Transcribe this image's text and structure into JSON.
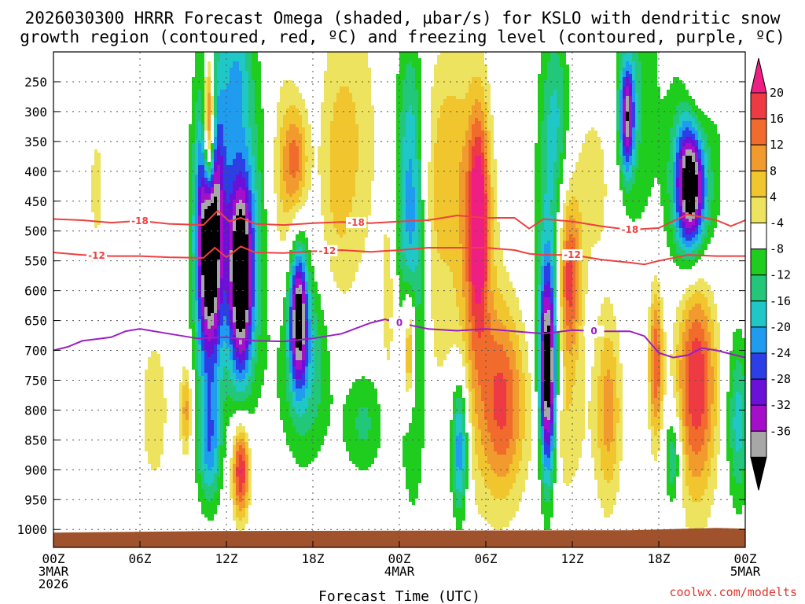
{
  "chart_data": {
    "type": "heatmap",
    "title_line1": "2026030300 HRRR Forecast Omega (shaded, µbar/s) for KSLO with dendritic snow",
    "title_line2": "growth region (contoured, red, ºC) and freezing level (contoured, purple, ºC)",
    "xlabel": "Forecast Time (UTC)",
    "credit": "coolwx.com/modelts",
    "x_hours": [
      0,
      48
    ],
    "x_ticks": [
      {
        "hour": 0,
        "label": "00Z",
        "sub1": "3MAR",
        "sub2": "2026"
      },
      {
        "hour": 6,
        "label": "06Z",
        "sub1": "",
        "sub2": ""
      },
      {
        "hour": 12,
        "label": "12Z",
        "sub1": "",
        "sub2": ""
      },
      {
        "hour": 18,
        "label": "18Z",
        "sub1": "",
        "sub2": ""
      },
      {
        "hour": 24,
        "label": "00Z",
        "sub1": "4MAR",
        "sub2": ""
      },
      {
        "hour": 30,
        "label": "06Z",
        "sub1": "",
        "sub2": ""
      },
      {
        "hour": 36,
        "label": "12Z",
        "sub1": "",
        "sub2": ""
      },
      {
        "hour": 42,
        "label": "18Z",
        "sub1": "",
        "sub2": ""
      },
      {
        "hour": 48,
        "label": "00Z",
        "sub1": "5MAR",
        "sub2": ""
      }
    ],
    "y_pressure_range": [
      200,
      1030
    ],
    "y_ticks": [
      "250",
      "300",
      "350",
      "400",
      "450",
      "500",
      "550",
      "600",
      "650",
      "700",
      "750",
      "800",
      "850",
      "900",
      "950",
      "1000"
    ],
    "colorbar": {
      "labels": [
        "20",
        "16",
        "12",
        "8",
        "4",
        "-4",
        "-8",
        "-12",
        "-16",
        "-20",
        "-24",
        "-28",
        "-32",
        "-36"
      ],
      "bins": [
        {
          "min": 24,
          "color": "#ee1e82"
        },
        {
          "min": 20,
          "color": "#ee3a43"
        },
        {
          "min": 16,
          "color": "#f06b2c"
        },
        {
          "min": 12,
          "color": "#f19a2e"
        },
        {
          "min": 8,
          "color": "#f0c52e"
        },
        {
          "min": 4,
          "color": "#ede35e"
        },
        {
          "min": -4,
          "color": "#ffffff"
        },
        {
          "min": -8,
          "color": "#1fcd1f"
        },
        {
          "min": -12,
          "color": "#22c77a"
        },
        {
          "min": -16,
          "color": "#1fc7c7"
        },
        {
          "min": -20,
          "color": "#1f9cf0"
        },
        {
          "min": -24,
          "color": "#2c3ee6"
        },
        {
          "min": -28,
          "color": "#6b10d8"
        },
        {
          "min": -32,
          "color": "#a50fc9"
        },
        {
          "min": -36,
          "color": "#a7a7a7"
        },
        {
          "min": -999,
          "color": "#000000"
        }
      ]
    },
    "omega_features": [
      {
        "hour": 10.8,
        "p": 330,
        "hw": 0.4,
        "hp": 120,
        "v": 40
      },
      {
        "hour": 10.8,
        "p": 520,
        "hw": 0.9,
        "hp": 210,
        "v": -42
      },
      {
        "hour": 11.5,
        "p": 400,
        "hw": 1.5,
        "hp": 330,
        "v": -12
      },
      {
        "hour": 13.0,
        "p": 580,
        "hw": 0.8,
        "hp": 160,
        "v": -40
      },
      {
        "hour": 13.0,
        "p": 900,
        "hw": 0.6,
        "hp": 80,
        "v": 26
      },
      {
        "hour": 13.8,
        "p": 480,
        "hw": 1.6,
        "hp": 280,
        "v": -10
      },
      {
        "hour": 17.0,
        "p": 640,
        "hw": 0.6,
        "hp": 110,
        "v": -34
      },
      {
        "hour": 17.5,
        "p": 720,
        "hw": 1.8,
        "hp": 160,
        "v": -13
      },
      {
        "hour": 9.2,
        "p": 800,
        "hw": 0.4,
        "hp": 70,
        "v": 14
      },
      {
        "hour": 10.8,
        "p": 860,
        "hw": 0.8,
        "hp": 100,
        "v": -16
      },
      {
        "hour": 15.8,
        "p": 430,
        "hw": 1.2,
        "hp": 220,
        "v": 8
      },
      {
        "hour": 16.8,
        "p": 380,
        "hw": 0.9,
        "hp": 90,
        "v": 14
      },
      {
        "hour": 12.8,
        "p": 230,
        "hw": 0.9,
        "hp": 110,
        "v": -9
      },
      {
        "hour": 19.5,
        "p": 420,
        "hw": 1.2,
        "hp": 250,
        "v": 7
      },
      {
        "hour": 21.5,
        "p": 820,
        "hw": 1.5,
        "hp": 90,
        "v": -9
      },
      {
        "hour": 24.8,
        "p": 440,
        "hw": 1.0,
        "hp": 260,
        "v": -18
      },
      {
        "hour": 25.0,
        "p": 750,
        "hw": 0.9,
        "hp": 200,
        "v": -12
      },
      {
        "hour": 24.7,
        "p": 700,
        "hw": 0.5,
        "hp": 110,
        "v": 26
      },
      {
        "hour": 26.2,
        "p": 560,
        "hw": 1.2,
        "hp": 300,
        "v": 6
      },
      {
        "hour": 27.5,
        "p": 370,
        "hw": 1.5,
        "hp": 190,
        "v": 8
      },
      {
        "hour": 29.5,
        "p": 470,
        "hw": 0.7,
        "hp": 180,
        "v": 22
      },
      {
        "hour": 29.2,
        "p": 600,
        "hw": 1.5,
        "hp": 300,
        "v": 12
      },
      {
        "hour": 28.2,
        "p": 860,
        "hw": 0.6,
        "hp": 120,
        "v": -22
      },
      {
        "hour": 31.2,
        "p": 790,
        "hw": 1.5,
        "hp": 160,
        "v": 20
      },
      {
        "hour": 34.3,
        "p": 750,
        "hw": 0.6,
        "hp": 170,
        "v": -42
      },
      {
        "hour": 34.3,
        "p": 500,
        "hw": 0.9,
        "hp": 300,
        "v": -10
      },
      {
        "hour": 35.0,
        "p": 300,
        "hw": 0.9,
        "hp": 150,
        "v": -9
      },
      {
        "hour": 35.8,
        "p": 580,
        "hw": 0.8,
        "hp": 130,
        "v": 22
      },
      {
        "hour": 35.2,
        "p": 820,
        "hw": 1.8,
        "hp": 140,
        "v": 8
      },
      {
        "hour": 37.5,
        "p": 420,
        "hw": 1.6,
        "hp": 150,
        "v": 6
      },
      {
        "hour": 38.5,
        "p": 800,
        "hw": 0.9,
        "hp": 160,
        "v": 14
      },
      {
        "hour": 39.8,
        "p": 310,
        "hw": 0.5,
        "hp": 90,
        "v": -30
      },
      {
        "hour": 40.4,
        "p": 260,
        "hw": 1.5,
        "hp": 260,
        "v": -8
      },
      {
        "hour": 41.8,
        "p": 720,
        "hw": 0.5,
        "hp": 130,
        "v": 20
      },
      {
        "hour": 43.0,
        "p": 880,
        "hw": 0.6,
        "hp": 80,
        "v": -14
      },
      {
        "hour": 44.2,
        "p": 420,
        "hw": 1.0,
        "hp": 110,
        "v": -42
      },
      {
        "hour": 44.5,
        "p": 420,
        "hw": 2.0,
        "hp": 260,
        "v": -10
      },
      {
        "hour": 44.6,
        "p": 740,
        "hw": 1.4,
        "hp": 200,
        "v": 26
      },
      {
        "hour": 44.6,
        "p": 300,
        "hw": 1.0,
        "hp": 150,
        "v": 12
      },
      {
        "hour": 47.5,
        "p": 820,
        "hw": 0.8,
        "hp": 140,
        "v": -14
      },
      {
        "hour": 3.0,
        "p": 430,
        "hw": 0.6,
        "hp": 120,
        "v": 5.5
      },
      {
        "hour": 7.0,
        "p": 800,
        "hw": 1.2,
        "hp": 160,
        "v": 6
      },
      {
        "hour": 21.0,
        "p": 350,
        "hw": 1.6,
        "hp": 250,
        "v": 7
      },
      {
        "hour": 23.3,
        "p": 620,
        "hw": 0.6,
        "hp": 180,
        "v": 7
      }
    ],
    "ground": {
      "color": "#a0522d",
      "pressure_top": 1000
    },
    "dgz_lines": [
      {
        "label": "-18",
        "color": "#ee4040",
        "points": [
          [
            0,
            480
          ],
          [
            2,
            482
          ],
          [
            4,
            486
          ],
          [
            6,
            483
          ],
          [
            8,
            488
          ],
          [
            10.4,
            490
          ],
          [
            11.4,
            466
          ],
          [
            12.2,
            484
          ],
          [
            13,
            478
          ],
          [
            14,
            488
          ],
          [
            16,
            490
          ],
          [
            18,
            487
          ],
          [
            20,
            485
          ],
          [
            22,
            487
          ],
          [
            24,
            484
          ],
          [
            26,
            482
          ],
          [
            28,
            474
          ],
          [
            30,
            478
          ],
          [
            32,
            478
          ],
          [
            33,
            496
          ],
          [
            34,
            480
          ],
          [
            36,
            484
          ],
          [
            38,
            492
          ],
          [
            40,
            498
          ],
          [
            42,
            495
          ],
          [
            44,
            472
          ],
          [
            46,
            482
          ],
          [
            47,
            492
          ],
          [
            48,
            482
          ]
        ],
        "label_hours": [
          6,
          21,
          40
        ]
      },
      {
        "label": "-12",
        "color": "#ee4040",
        "points": [
          [
            0,
            536
          ],
          [
            2,
            540
          ],
          [
            4,
            542
          ],
          [
            6,
            542
          ],
          [
            8,
            544
          ],
          [
            10.4,
            545
          ],
          [
            11.2,
            528
          ],
          [
            12,
            544
          ],
          [
            13,
            526
          ],
          [
            14,
            536
          ],
          [
            16,
            537
          ],
          [
            18,
            534
          ],
          [
            20,
            532
          ],
          [
            22,
            535
          ],
          [
            24,
            532
          ],
          [
            26,
            528
          ],
          [
            28,
            528
          ],
          [
            30,
            528
          ],
          [
            32,
            532
          ],
          [
            33,
            538
          ],
          [
            34,
            540
          ],
          [
            36,
            540
          ],
          [
            38,
            548
          ],
          [
            40,
            553
          ],
          [
            41,
            556
          ],
          [
            42,
            550
          ],
          [
            44,
            540
          ],
          [
            46,
            542
          ],
          [
            48,
            542
          ]
        ],
        "label_hours": [
          3,
          19,
          36
        ]
      }
    ],
    "freezing_line": {
      "label": "0",
      "color": "#9b1fc4",
      "points": [
        [
          0,
          700
        ],
        [
          1,
          694
        ],
        [
          2,
          684
        ],
        [
          4,
          678
        ],
        [
          5,
          668
        ],
        [
          6,
          664
        ],
        [
          8,
          672
        ],
        [
          10,
          680
        ],
        [
          12,
          678
        ],
        [
          14,
          684
        ],
        [
          16,
          685
        ],
        [
          18,
          680
        ],
        [
          20,
          672
        ],
        [
          22,
          654
        ],
        [
          23,
          648
        ],
        [
          24,
          654
        ],
        [
          26,
          664
        ],
        [
          28,
          667
        ],
        [
          30,
          664
        ],
        [
          32,
          668
        ],
        [
          34,
          672
        ],
        [
          36,
          666
        ],
        [
          38,
          668
        ],
        [
          40,
          668
        ],
        [
          41,
          676
        ],
        [
          42,
          704
        ],
        [
          43,
          712
        ],
        [
          44,
          708
        ],
        [
          45,
          696
        ],
        [
          46,
          700
        ],
        [
          48,
          712
        ]
      ],
      "label_hours": [
        24,
        37.5
      ]
    }
  }
}
